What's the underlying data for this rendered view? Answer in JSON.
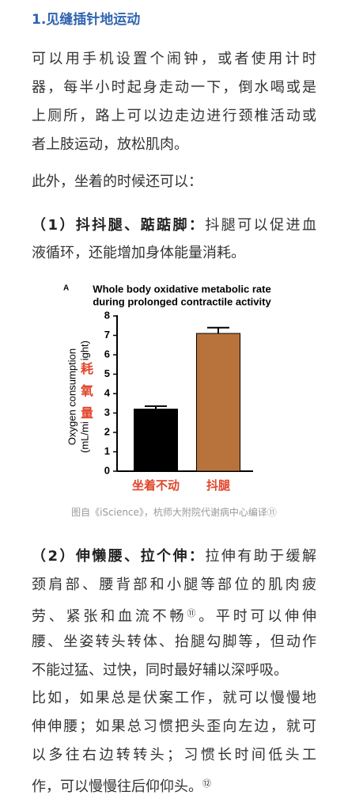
{
  "heading": "1.见缝插针地运动",
  "paragraphs": [
    {
      "lines": [
        "可以用手机设置个闹钟，或者使用计时",
        "器，每半小时起身走动一下，倒水喝或是",
        "上厕所，路上可以边走边进行颈椎活动或",
        "者上肢运动，放松肌肉。"
      ]
    },
    {
      "lines": [
        "此外，坐着的时候还可以："
      ]
    },
    {
      "lead": "（1）抖抖腿、踮踮脚：",
      "lines": [
        "抖腿可以促进血",
        "液循环，还能增加身体能量消耗。"
      ]
    },
    {
      "lead": "（2）伸懒腰、拉个伸：",
      "lines": [
        "拉伸有助于缓解",
        "颈肩部、腰背部和小腿等部位的肌肉疲",
        {
          "text": "劳、紧张和血流不畅",
          "sup": "⑪",
          "rest": "。平时可以伸伸"
        },
        "腰、坐姿转头转体、抬腿勾脚等，但动作",
        "不能过猛、过快，同时最好辅以深呼吸。"
      ]
    },
    {
      "lines": [
        "比如，如果总是伏案工作，就可以慢慢地",
        "伸伸腰；如果总习惯把头歪向左边，就可",
        "以多往右边转转头；习惯长时间低头工",
        {
          "text": "作，可以慢慢往后仰仰头。",
          "sup": "⑫"
        }
      ]
    }
  ],
  "chart_data": {
    "type": "bar",
    "panel_label": "A",
    "title": [
      "Whole body oxidative metabolic rate",
      "during prolonged contractile activity"
    ],
    "y_label": {
      "line1": "Oxygen consumption",
      "line2_start": "(mL/mi",
      "line2_end": "ight)"
    },
    "y_label_overlay": [
      "耗",
      "氧",
      "量"
    ],
    "categories": [
      "坐着不动",
      "抖腿"
    ],
    "values": [
      3.2,
      7.1
    ],
    "errors": [
      0.15,
      0.3
    ],
    "colors": [
      "#000000",
      "#b8733d"
    ],
    "ylim": [
      0,
      8
    ],
    "yticks": [
      0,
      1,
      2,
      3,
      4,
      5,
      6,
      7,
      8
    ]
  },
  "caption": "图自《iScience》，杭师大附院代谢病中心编译⑪"
}
